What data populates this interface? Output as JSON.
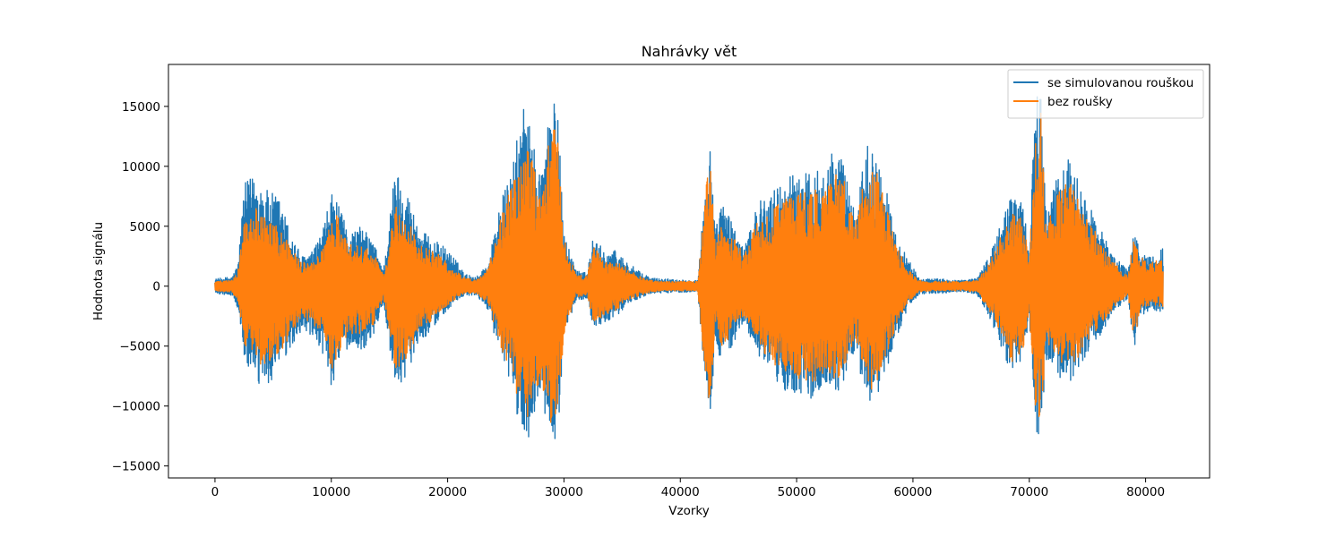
{
  "chart_data": {
    "type": "line",
    "title": "Nahrávky vět",
    "xlabel": "Vzorky",
    "ylabel": "Hodnota signálu",
    "xlim": [
      -4000,
      85500
    ],
    "ylim": [
      -16000,
      18500
    ],
    "xticks": [
      0,
      10000,
      20000,
      30000,
      40000,
      50000,
      60000,
      70000,
      80000
    ],
    "xtick_labels": [
      "0",
      "10000",
      "20000",
      "30000",
      "40000",
      "50000",
      "60000",
      "70000",
      "80000"
    ],
    "yticks": [
      -15000,
      -10000,
      -5000,
      0,
      5000,
      10000,
      15000
    ],
    "ytick_labels": [
      "−15000",
      "−10000",
      "−5000",
      "0",
      "5000",
      "10000",
      "15000"
    ],
    "grid": false,
    "legend_position": "top-right",
    "n_samples": 81500,
    "series": [
      {
        "name": "se simulovanou rouškou",
        "color": "#1f77b4",
        "envelope_x": [
          0,
          1500,
          2000,
          2500,
          3500,
          4500,
          5500,
          6500,
          7500,
          8500,
          9500,
          10000,
          10500,
          11500,
          12500,
          13500,
          14500,
          15500,
          16500,
          17500,
          18500,
          19500,
          20500,
          21500,
          22500,
          23500,
          24500,
          25500,
          26500,
          27000,
          28000,
          28500,
          29000,
          29500,
          30000,
          31000,
          32000,
          32500,
          33500,
          34500,
          35500,
          36500,
          37500,
          38500,
          39500,
          40500,
          41500,
          42500,
          43000,
          43500,
          44500,
          45500,
          46500,
          47500,
          48500,
          49500,
          50500,
          51500,
          52500,
          53500,
          54000,
          55000,
          56000,
          56500,
          57500,
          58500,
          59500,
          60500,
          61500,
          62500,
          63500,
          64500,
          65500,
          66500,
          67500,
          68500,
          69500,
          70000,
          70500,
          71000,
          71500,
          72500,
          73500,
          74500,
          75500,
          76500,
          77500,
          78500,
          79000,
          79500,
          80500,
          81500
        ],
        "envelope_max": [
          600,
          800,
          2000,
          8500,
          9500,
          8000,
          7500,
          4500,
          2500,
          3000,
          5500,
          8000,
          7000,
          4500,
          5000,
          4000,
          1500,
          10000,
          8000,
          5000,
          4000,
          3500,
          2500,
          1000,
          800,
          2000,
          7000,
          9500,
          15500,
          13500,
          9500,
          13500,
          16000,
          14000,
          4500,
          1500,
          1200,
          4000,
          3000,
          3000,
          2000,
          1200,
          700,
          600,
          600,
          500,
          500,
          13000,
          4500,
          7000,
          5500,
          3000,
          7000,
          7500,
          8500,
          9500,
          9500,
          9500,
          11000,
          11500,
          10500,
          6000,
          12000,
          12000,
          9000,
          4500,
          2500,
          700,
          600,
          600,
          500,
          500,
          700,
          2500,
          5000,
          8000,
          7000,
          2500,
          15500,
          16500,
          6000,
          9500,
          11000,
          8000,
          6000,
          4000,
          2500,
          1200,
          5000,
          3000,
          2500,
          3200
        ],
        "envelope_min": [
          -600,
          -800,
          -2000,
          -6000,
          -8500,
          -8500,
          -7000,
          -5500,
          -3500,
          -5000,
          -6000,
          -8500,
          -7000,
          -5000,
          -5500,
          -4500,
          -1500,
          -8500,
          -7500,
          -4500,
          -4000,
          -2500,
          -1500,
          -800,
          -800,
          -2000,
          -6000,
          -8500,
          -13500,
          -12500,
          -9000,
          -12000,
          -14500,
          -12000,
          -4500,
          -1200,
          -1000,
          -3500,
          -3000,
          -2500,
          -1500,
          -1000,
          -600,
          -600,
          -500,
          -500,
          -500,
          -12500,
          -4500,
          -6500,
          -5000,
          -3000,
          -5500,
          -7000,
          -8500,
          -9000,
          -9000,
          -9500,
          -8500,
          -9000,
          -8000,
          -5500,
          -9500,
          -10000,
          -8000,
          -4500,
          -2000,
          -700,
          -600,
          -600,
          -500,
          -500,
          -700,
          -2500,
          -5000,
          -7500,
          -6500,
          -2500,
          -12000,
          -13000,
          -6000,
          -7500,
          -8500,
          -6500,
          -5000,
          -3500,
          -2000,
          -1000,
          -5500,
          -2500,
          -2000,
          -2200
        ]
      },
      {
        "name": "bez roušky",
        "color": "#ff7f0e",
        "envelope_x": [
          0,
          1500,
          2000,
          2500,
          3500,
          4500,
          5500,
          6500,
          7500,
          8500,
          9500,
          10000,
          10500,
          11500,
          12500,
          13500,
          14500,
          15500,
          16500,
          17500,
          18500,
          19500,
          20500,
          21500,
          22500,
          23500,
          24500,
          25500,
          26500,
          27000,
          28000,
          28500,
          29000,
          29500,
          30000,
          31000,
          32000,
          32500,
          33500,
          34500,
          35500,
          36500,
          37500,
          38500,
          39500,
          40500,
          41500,
          42500,
          43000,
          43500,
          44500,
          45500,
          46500,
          47500,
          48500,
          49500,
          50500,
          51500,
          52500,
          53500,
          54000,
          55000,
          56000,
          56500,
          57500,
          58500,
          59500,
          60500,
          61500,
          62500,
          63500,
          64500,
          65500,
          66500,
          67500,
          68500,
          69500,
          70000,
          70500,
          71000,
          71500,
          72500,
          73500,
          74500,
          75500,
          76500,
          77500,
          78500,
          79000,
          79500,
          80500,
          81500
        ],
        "envelope_max": [
          400,
          500,
          1500,
          5500,
          6500,
          5500,
          5000,
          3500,
          2000,
          2000,
          3500,
          6500,
          6000,
          3500,
          3500,
          3000,
          1000,
          7000,
          6000,
          3500,
          3000,
          2500,
          1500,
          700,
          500,
          1500,
          5500,
          8500,
          11000,
          11500,
          7500,
          10500,
          14500,
          12000,
          4000,
          1000,
          800,
          3500,
          2000,
          2000,
          1500,
          800,
          500,
          400,
          400,
          400,
          400,
          12000,
          3500,
          5500,
          4500,
          2500,
          5500,
          6000,
          7000,
          7500,
          8000,
          8000,
          8500,
          10000,
          9500,
          5000,
          10000,
          11000,
          7500,
          3500,
          1500,
          500,
          400,
          400,
          400,
          400,
          500,
          1800,
          4000,
          6500,
          5500,
          2000,
          12500,
          14500,
          5000,
          8000,
          9000,
          6500,
          5000,
          3000,
          1800,
          800,
          4500,
          2500,
          2000,
          2500
        ],
        "envelope_min": [
          -400,
          -500,
          -1500,
          -5000,
          -6500,
          -6500,
          -5500,
          -4500,
          -2500,
          -3500,
          -4500,
          -7000,
          -6000,
          -4000,
          -4000,
          -3500,
          -1000,
          -7000,
          -6500,
          -3500,
          -3000,
          -2000,
          -1200,
          -600,
          -600,
          -1500,
          -5000,
          -7500,
          -11000,
          -11000,
          -8000,
          -10500,
          -12000,
          -10500,
          -4000,
          -900,
          -800,
          -3000,
          -2500,
          -2000,
          -1200,
          -800,
          -500,
          -400,
          -400,
          -400,
          -400,
          -11500,
          -3500,
          -5500,
          -4000,
          -2500,
          -4500,
          -6000,
          -7000,
          -7500,
          -8000,
          -8000,
          -7500,
          -8000,
          -7000,
          -4500,
          -8000,
          -9000,
          -6500,
          -3500,
          -1500,
          -500,
          -400,
          -400,
          -400,
          -400,
          -500,
          -2000,
          -4000,
          -6500,
          -5500,
          -2000,
          -11000,
          -12000,
          -5000,
          -6500,
          -7000,
          -5500,
          -4000,
          -2800,
          -1500,
          -800,
          -5000,
          -2000,
          -1500,
          -1800
        ]
      }
    ]
  }
}
